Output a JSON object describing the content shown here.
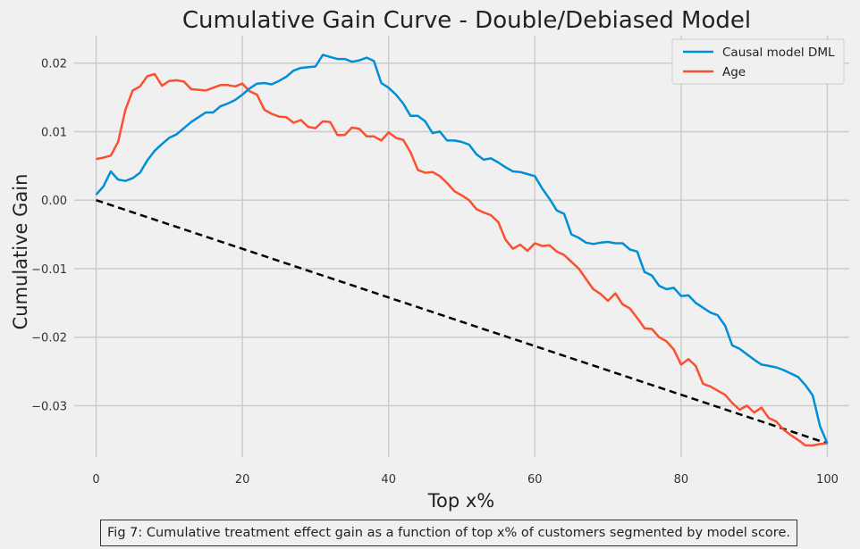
{
  "chart_data": {
    "type": "line",
    "title": "Cumulative Gain Curve - Double/Debiased Model",
    "xlabel": "Top x%",
    "ylabel": "Cumulative Gain",
    "xlim": [
      -3,
      103
    ],
    "ylim": [
      -0.0375,
      0.024
    ],
    "xticks": [
      0,
      20,
      40,
      60,
      80,
      100
    ],
    "xtick_labels": [
      "0",
      "20",
      "40",
      "60",
      "80",
      "100"
    ],
    "yticks": [
      -0.03,
      -0.02,
      -0.01,
      0.0,
      0.01,
      0.02
    ],
    "ytick_labels": [
      "−0.03",
      "−0.02",
      "−0.01",
      "0.00",
      "0.01",
      "0.02"
    ],
    "grid": true,
    "legend_position": "top-right",
    "series": [
      {
        "name": "Causal model DML",
        "color": "#008fd5",
        "x": [
          0,
          1,
          2,
          3,
          4,
          5,
          6,
          7,
          8,
          9,
          10,
          11,
          12,
          13,
          14,
          15,
          16,
          17,
          18,
          19,
          20,
          21,
          22,
          23,
          24,
          25,
          26,
          27,
          28,
          29,
          30,
          31,
          32,
          33,
          34,
          35,
          36,
          37,
          38,
          39,
          40,
          41,
          42,
          43,
          44,
          45,
          46,
          47,
          48,
          49,
          50,
          51,
          52,
          53,
          54,
          55,
          56,
          57,
          58,
          59,
          60,
          61,
          62,
          63,
          64,
          65,
          66,
          67,
          68,
          69,
          70,
          71,
          72,
          73,
          74,
          75,
          76,
          77,
          78,
          79,
          80,
          81,
          82,
          83,
          84,
          85,
          86,
          87,
          88,
          89,
          90,
          91,
          92,
          93,
          94,
          95,
          96,
          97,
          98,
          99,
          100
        ],
        "y": [
          0.0008,
          0.002,
          0.0042,
          0.003,
          0.0028,
          0.0032,
          0.004,
          0.0058,
          0.0072,
          0.0082,
          0.0091,
          0.0096,
          0.0105,
          0.0114,
          0.0121,
          0.0128,
          0.0128,
          0.0137,
          0.0141,
          0.0146,
          0.0154,
          0.0163,
          0.017,
          0.0171,
          0.0169,
          0.0174,
          0.018,
          0.0189,
          0.0193,
          0.0194,
          0.0195,
          0.0212,
          0.0209,
          0.0206,
          0.0206,
          0.0202,
          0.0204,
          0.0208,
          0.0203,
          0.0171,
          0.0164,
          0.0154,
          0.0141,
          0.0123,
          0.0123,
          0.0115,
          0.0098,
          0.01,
          0.0087,
          0.0087,
          0.0085,
          0.0081,
          0.0067,
          0.0059,
          0.0061,
          0.0055,
          0.0048,
          0.0042,
          0.0041,
          0.0038,
          0.0035,
          0.0017,
          0.0002,
          -0.0015,
          -0.002,
          -0.005,
          -0.0055,
          -0.0062,
          -0.0064,
          -0.0062,
          -0.0061,
          -0.0063,
          -0.0063,
          -0.0072,
          -0.0075,
          -0.0105,
          -0.011,
          -0.0125,
          -0.013,
          -0.0128,
          -0.014,
          -0.0139,
          -0.015,
          -0.0157,
          -0.0164,
          -0.0168,
          -0.0183,
          -0.0212,
          -0.0217,
          -0.0225,
          -0.0233,
          -0.024,
          -0.0242,
          -0.0244,
          -0.0248,
          -0.0253,
          -0.0258,
          -0.027,
          -0.0285,
          -0.033,
          -0.0355
        ]
      },
      {
        "name": "Age",
        "color": "#fc4f30",
        "x": [
          0,
          1,
          2,
          3,
          4,
          5,
          6,
          7,
          8,
          9,
          10,
          11,
          12,
          13,
          14,
          15,
          16,
          17,
          18,
          19,
          20,
          21,
          22,
          23,
          24,
          25,
          26,
          27,
          28,
          29,
          30,
          31,
          32,
          33,
          34,
          35,
          36,
          37,
          38,
          39,
          40,
          41,
          42,
          43,
          44,
          45,
          46,
          47,
          48,
          49,
          50,
          51,
          52,
          53,
          54,
          55,
          56,
          57,
          58,
          59,
          60,
          61,
          62,
          63,
          64,
          65,
          66,
          67,
          68,
          69,
          70,
          71,
          72,
          73,
          74,
          75,
          76,
          77,
          78,
          79,
          80,
          81,
          82,
          83,
          84,
          85,
          86,
          87,
          88,
          89,
          90,
          91,
          92,
          93,
          94,
          95,
          96,
          97,
          98,
          99,
          100
        ],
        "y": [
          0.006,
          0.0062,
          0.0065,
          0.0085,
          0.0132,
          0.016,
          0.0166,
          0.0181,
          0.0184,
          0.0167,
          0.0174,
          0.0175,
          0.0173,
          0.0162,
          0.0161,
          0.016,
          0.0164,
          0.0168,
          0.0168,
          0.0166,
          0.017,
          0.0159,
          0.0154,
          0.0132,
          0.0126,
          0.0122,
          0.0121,
          0.0113,
          0.0117,
          0.0107,
          0.0105,
          0.0115,
          0.0114,
          0.0095,
          0.0095,
          0.0106,
          0.0104,
          0.0093,
          0.0093,
          0.0087,
          0.0099,
          0.0091,
          0.0088,
          0.007,
          0.0044,
          0.004,
          0.0041,
          0.0035,
          0.0025,
          0.0013,
          0.0007,
          0.0,
          -0.0013,
          -0.0018,
          -0.0022,
          -0.0032,
          -0.0058,
          -0.0071,
          -0.0065,
          -0.0074,
          -0.0063,
          -0.0067,
          -0.0066,
          -0.0075,
          -0.008,
          -0.009,
          -0.01,
          -0.0115,
          -0.013,
          -0.0137,
          -0.0147,
          -0.0136,
          -0.0152,
          -0.0158,
          -0.0172,
          -0.0187,
          -0.0188,
          -0.02,
          -0.0206,
          -0.0218,
          -0.024,
          -0.0232,
          -0.0242,
          -0.0268,
          -0.0272,
          -0.0278,
          -0.0284,
          -0.0296,
          -0.0306,
          -0.03,
          -0.031,
          -0.0303,
          -0.0318,
          -0.0323,
          -0.0335,
          -0.0343,
          -0.035,
          -0.0358,
          -0.0358,
          -0.0356,
          -0.0355
        ]
      },
      {
        "name": "",
        "color": "#000000",
        "style": "dashed",
        "x": [
          0,
          100
        ],
        "y": [
          0.0,
          -0.0355
        ]
      }
    ]
  },
  "caption": "Fig 7: Cumulative treatment effect gain as a function of top x% of customers segmented by model score."
}
